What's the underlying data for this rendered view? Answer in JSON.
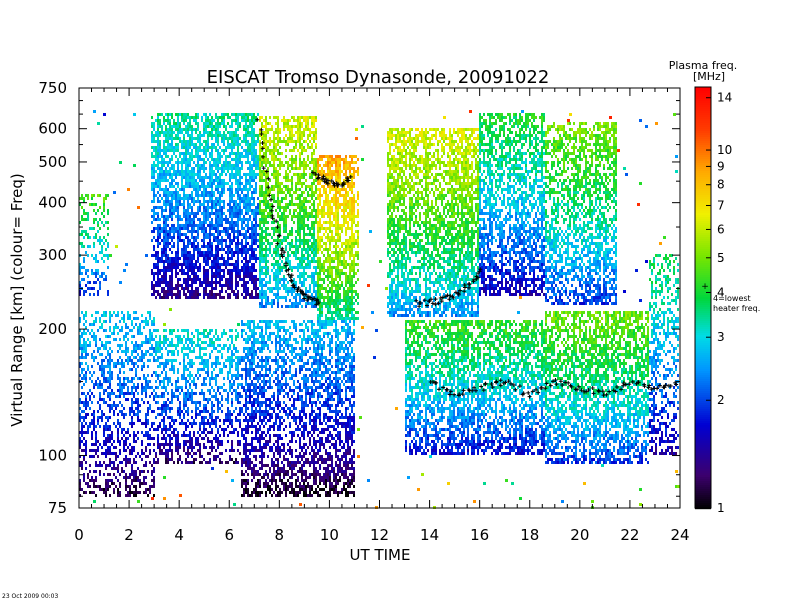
{
  "chart_data": {
    "type": "heatmap",
    "title": "EISCAT Tromso Dynasonde,  20091022",
    "xlabel": "UT TIME",
    "ylabel": "Virtual Range [km]    (colour= Freq)",
    "x_range": [
      0,
      24
    ],
    "y_range_km": [
      75,
      750
    ],
    "y_scale": "log",
    "x_ticks": [
      "0",
      "2",
      "4",
      "6",
      "8",
      "10",
      "12",
      "14",
      "16",
      "18",
      "20",
      "22",
      "24"
    ],
    "y_ticks": [
      "75",
      "100",
      "200",
      "300",
      "400",
      "500",
      "600",
      "750"
    ],
    "colorbar": {
      "title": "Plasma freq.",
      "unit": "[MHz]",
      "range_mhz": [
        1,
        15
      ],
      "scale": "log",
      "ticks": [
        "1",
        "2",
        "3",
        "4",
        "5",
        "6",
        "7",
        "8",
        "9",
        "10",
        "14"
      ],
      "annotation_lines": [
        "4=lowest",
        "heater freq."
      ],
      "annotation_marker": "+"
    },
    "footer": "23 Oct 2009 00:03",
    "grid": false,
    "bands": [
      {
        "name": "F",
        "x0": 2.9,
        "x1": 7.2,
        "base_km": 235,
        "top_km": 650,
        "freq_mhz": 2.4,
        "density": 0.85
      },
      {
        "name": "F",
        "x0": 7.2,
        "x1": 9.5,
        "base_km": 225,
        "top_km": 640,
        "freq_mhz": 4.3,
        "density": 0.85
      },
      {
        "name": "F",
        "x0": 9.5,
        "x1": 11.2,
        "base_km": 210,
        "top_km": 520,
        "freq_mhz": 6.0,
        "density": 0.9
      },
      {
        "name": "F",
        "x0": 12.3,
        "x1": 16.0,
        "base_km": 215,
        "top_km": 600,
        "freq_mhz": 4.4,
        "density": 0.85
      },
      {
        "name": "F",
        "x0": 16.0,
        "x1": 18.6,
        "base_km": 240,
        "top_km": 650,
        "freq_mhz": 2.8,
        "density": 0.85
      },
      {
        "name": "F",
        "x0": 18.6,
        "x1": 21.5,
        "base_km": 230,
        "top_km": 620,
        "freq_mhz": 3.5,
        "density": 0.75
      },
      {
        "name": "F",
        "x0": 0.0,
        "x1": 1.2,
        "base_km": 240,
        "top_km": 420,
        "freq_mhz": 3.2,
        "density": 0.45
      },
      {
        "name": "E",
        "x0": 0.0,
        "x1": 3.0,
        "base_km": 80,
        "top_km": 220,
        "freq_mhz": 2.0,
        "density": 0.55
      },
      {
        "name": "E",
        "x0": 3.0,
        "x1": 6.5,
        "base_km": 95,
        "top_km": 200,
        "freq_mhz": 2.2,
        "density": 0.6
      },
      {
        "name": "E",
        "x0": 6.5,
        "x1": 11.0,
        "base_km": 80,
        "top_km": 210,
        "freq_mhz": 1.9,
        "density": 0.75
      },
      {
        "name": "E",
        "x0": 13.0,
        "x1": 18.6,
        "base_km": 100,
        "top_km": 210,
        "freq_mhz": 3.0,
        "density": 0.85
      },
      {
        "name": "E",
        "x0": 18.6,
        "x1": 22.8,
        "base_km": 95,
        "top_km": 220,
        "freq_mhz": 3.4,
        "density": 0.85
      },
      {
        "name": "E",
        "x0": 22.8,
        "x1": 24.0,
        "base_km": 100,
        "top_km": 300,
        "freq_mhz": 2.6,
        "density": 0.55
      }
    ],
    "trace_segments": [
      {
        "x": [
          7.2,
          7.6,
          8.0,
          8.4,
          8.8,
          9.2,
          9.6
        ],
        "y_km": [
          620,
          420,
          320,
          270,
          245,
          235,
          230
        ]
      },
      {
        "x": [
          9.4,
          9.9,
          10.4,
          10.9
        ],
        "y_km": [
          470,
          450,
          440,
          460
        ]
      },
      {
        "x": [
          13.5,
          14.2,
          14.9,
          15.6,
          16.1
        ],
        "y_km": [
          230,
          232,
          240,
          255,
          280
        ]
      },
      {
        "x": [
          14.0,
          15.0,
          16.0,
          17.0,
          18.0,
          19.0,
          20.0,
          21.0,
          22.0,
          23.0,
          24.0
        ],
        "y_km": [
          150,
          140,
          145,
          150,
          140,
          150,
          145,
          140,
          150,
          145,
          150
        ]
      }
    ]
  }
}
